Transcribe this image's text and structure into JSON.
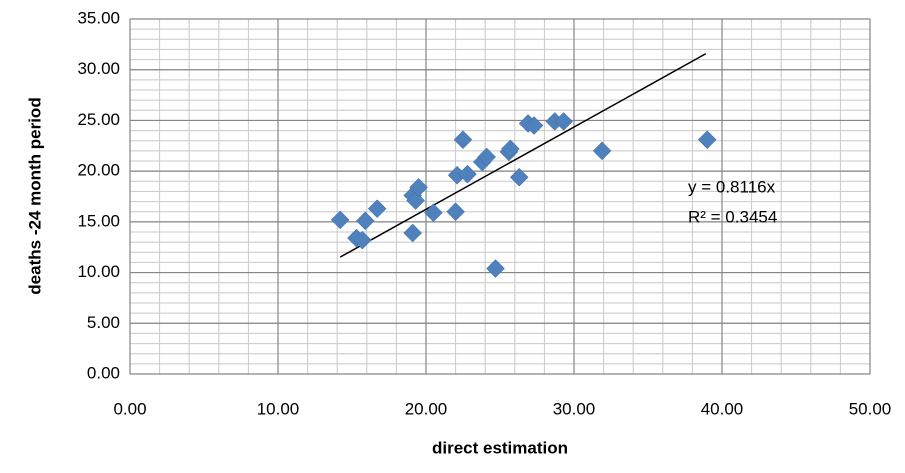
{
  "chart_data": {
    "type": "scatter",
    "xlabel": "direct estimation",
    "ylabel": "deaths -24 month period",
    "series": [
      {
        "color": "#4f81bd",
        "x": [
          14.2,
          15.3,
          15.7,
          15.9,
          16.7,
          19.1,
          19.3,
          19.5,
          19.1,
          20.5,
          22.0,
          22.1,
          22.5,
          22.8,
          23.8,
          24.1,
          24.7,
          25.6,
          25.7,
          26.3,
          26.9,
          27.3,
          28.7,
          29.3,
          31.9,
          39.0
        ],
        "values": [
          15.2,
          13.4,
          13.2,
          15.1,
          16.3,
          17.6,
          17.1,
          18.4,
          13.9,
          15.9,
          16.0,
          19.6,
          23.1,
          19.7,
          20.9,
          21.4,
          10.4,
          21.9,
          22.2,
          19.4,
          24.7,
          24.5,
          24.9,
          24.9,
          22.0,
          23.1
        ]
      }
    ],
    "trendline": {
      "slope": 0.8116,
      "x": [
        14.2,
        38.9
      ],
      "color": "#000000"
    },
    "annotations": [
      "y = 0.8116x",
      "R² = 0.3454"
    ],
    "xlim": [
      0,
      50
    ],
    "xticks": [
      {
        "value": 0,
        "label": "0.00"
      },
      {
        "value": 10,
        "label": "10.00"
      },
      {
        "value": 20,
        "label": "20.00"
      },
      {
        "value": 30,
        "label": "30.00"
      },
      {
        "value": 40,
        "label": "40.00"
      },
      {
        "value": 50,
        "label": "50.00"
      }
    ],
    "ylim": [
      0,
      35
    ],
    "yticks": [
      {
        "value": 0,
        "label": "0.00"
      },
      {
        "value": 5,
        "label": "5.00"
      },
      {
        "value": 10,
        "label": "10.00"
      },
      {
        "value": 15,
        "label": "15.00"
      },
      {
        "value": 20,
        "label": "20.00"
      },
      {
        "value": 25,
        "label": "25.00"
      },
      {
        "value": 30,
        "label": "30.00"
      },
      {
        "value": 35,
        "label": "35.00"
      }
    ],
    "grid": true,
    "xminor": 2,
    "yminor": 1
  }
}
